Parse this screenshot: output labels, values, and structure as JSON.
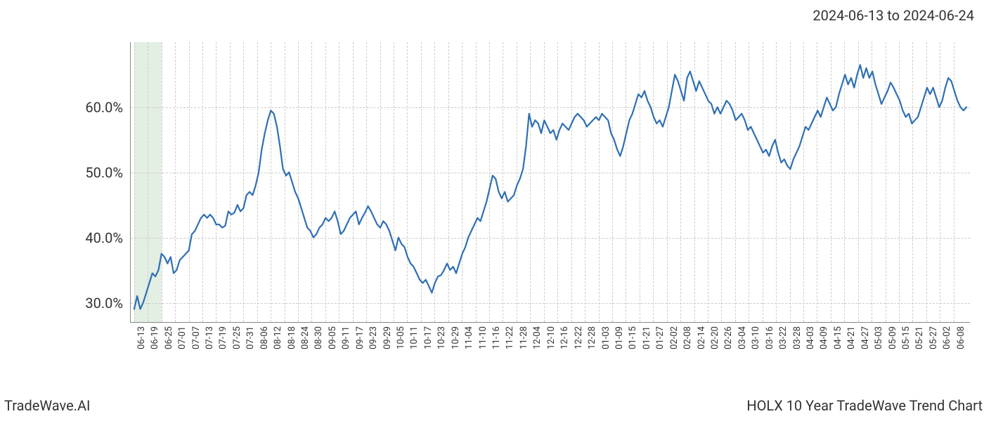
{
  "date_range": "2024-06-13 to 2024-06-24",
  "brand": "TradeWave.AI",
  "caption": "HOLX 10 Year TradeWave Trend Chart",
  "chart": {
    "type": "line",
    "background_color": "#ffffff",
    "line_color": "#2f6fb3",
    "line_width": 2.2,
    "grid_color": "#cccccc",
    "axis_color": "#888888",
    "shade_color": "rgba(144,192,144,0.25)",
    "y_axis": {
      "min": 27.0,
      "max": 70.0,
      "ticks": [
        30.0,
        40.0,
        50.0,
        60.0
      ],
      "tick_labels": [
        "30.0%",
        "40.0%",
        "50.0%",
        "60.0%"
      ],
      "label_fontsize": 20
    },
    "x_axis": {
      "ticks": [
        "06-13",
        "06-19",
        "06-25",
        "07-01",
        "07-07",
        "07-13",
        "07-19",
        "07-25",
        "07-31",
        "08-06",
        "08-12",
        "08-18",
        "08-24",
        "08-30",
        "09-05",
        "09-11",
        "09-17",
        "09-23",
        "09-29",
        "10-05",
        "10-11",
        "10-17",
        "10-23",
        "10-29",
        "11-04",
        "11-10",
        "11-16",
        "11-22",
        "11-28",
        "12-04",
        "12-10",
        "12-16",
        "12-22",
        "12-28",
        "01-03",
        "01-09",
        "01-15",
        "01-21",
        "01-27",
        "02-02",
        "02-08",
        "02-14",
        "02-20",
        "02-26",
        "03-04",
        "03-10",
        "03-16",
        "03-22",
        "03-28",
        "04-03",
        "04-09",
        "04-15",
        "04-21",
        "04-27",
        "05-03",
        "05-09",
        "05-15",
        "05-21",
        "05-27",
        "06-02",
        "06-08"
      ],
      "label_fontsize": 13,
      "rotation": -90
    },
    "shaded_region": {
      "x_start_tick": "06-13",
      "x_end_tick": "06-25"
    },
    "series": [
      29.0,
      31.0,
      29.0,
      30.0,
      31.5,
      33.0,
      34.5,
      34.0,
      35.0,
      37.5,
      37.0,
      36.0,
      37.0,
      34.5,
      35.0,
      36.5,
      37.0,
      37.5,
      38.0,
      40.5,
      41.0,
      42.0,
      43.0,
      43.5,
      43.0,
      43.5,
      43.0,
      42.0,
      42.0,
      41.5,
      41.8,
      44.0,
      43.5,
      43.8,
      45.0,
      44.0,
      44.5,
      46.5,
      47.0,
      46.5,
      48.0,
      50.0,
      53.5,
      56.0,
      58.0,
      59.5,
      59.0,
      57.0,
      54.0,
      50.5,
      49.5,
      50.0,
      48.5,
      47.0,
      46.0,
      44.5,
      43.0,
      41.5,
      41.0,
      40.0,
      40.5,
      41.5,
      42.0,
      43.0,
      42.5,
      43.0,
      44.0,
      42.5,
      40.5,
      41.0,
      42.0,
      43.0,
      43.5,
      44.0,
      42.0,
      43.0,
      43.8,
      44.8,
      44.0,
      43.0,
      42.0,
      41.5,
      42.5,
      42.0,
      41.0,
      39.5,
      38.0,
      40.0,
      39.0,
      38.5,
      37.0,
      36.0,
      35.5,
      34.5,
      33.5,
      33.0,
      33.5,
      32.5,
      31.5,
      33.0,
      34.0,
      34.2,
      35.0,
      36.0,
      35.0,
      35.5,
      34.5,
      36.0,
      37.5,
      38.5,
      40.0,
      41.0,
      42.0,
      43.0,
      42.5,
      44.0,
      45.5,
      47.5,
      49.5,
      49.0,
      47.0,
      46.0,
      47.0,
      45.5,
      46.0,
      46.5,
      48.0,
      49.0,
      50.5,
      54.0,
      59.0,
      57.0,
      58.0,
      57.5,
      56.0,
      58.0,
      57.0,
      56.0,
      56.5,
      55.0,
      56.5,
      57.5,
      57.0,
      56.5,
      57.5,
      58.5,
      59.0,
      58.5,
      58.0,
      57.0,
      57.5,
      58.0,
      58.5,
      58.0,
      59.0,
      58.5,
      58.0,
      56.0,
      55.0,
      53.5,
      52.5,
      54.0,
      56.0,
      58.0,
      59.0,
      60.5,
      62.0,
      61.5,
      62.5,
      61.0,
      60.0,
      58.5,
      57.5,
      58.0,
      57.0,
      58.5,
      60.0,
      62.5,
      65.0,
      64.0,
      62.5,
      61.0,
      64.5,
      65.5,
      64.0,
      62.5,
      64.0,
      63.0,
      62.0,
      61.0,
      60.5,
      59.0,
      60.0,
      59.0,
      60.0,
      61.0,
      60.5,
      59.5,
      58.0,
      58.5,
      59.0,
      58.0,
      56.5,
      57.0,
      56.0,
      55.0,
      54.0,
      53.0,
      53.5,
      52.5,
      54.0,
      55.0,
      53.0,
      51.5,
      52.0,
      51.0,
      50.5,
      52.0,
      53.0,
      54.0,
      55.5,
      57.0,
      56.5,
      57.5,
      58.5,
      59.5,
      58.5,
      60.0,
      61.5,
      60.5,
      59.5,
      60.0,
      62.0,
      63.5,
      65.0,
      63.5,
      64.5,
      63.0,
      65.0,
      66.5,
      64.5,
      66.0,
      64.5,
      65.5,
      63.5,
      62.0,
      60.5,
      61.5,
      62.5,
      63.8,
      63.0,
      62.0,
      61.0,
      59.5,
      58.5,
      59.0,
      57.5,
      58.0,
      58.5,
      60.0,
      61.5,
      63.0,
      62.0,
      63.0,
      61.5,
      60.0,
      61.0,
      63.0,
      64.5,
      64.0,
      62.5,
      61.0,
      60.0,
      59.5,
      60.0
    ]
  }
}
